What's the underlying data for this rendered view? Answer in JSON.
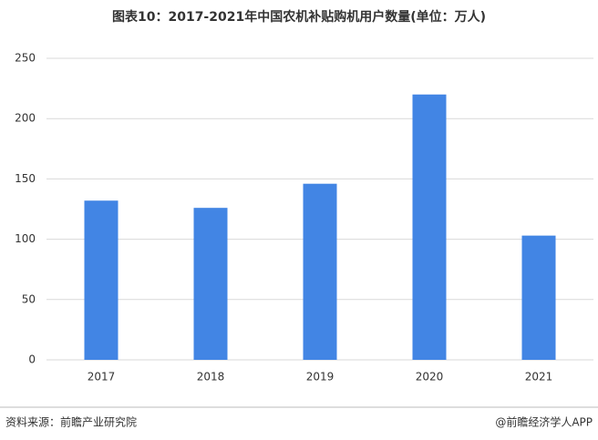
{
  "chart_data": {
    "type": "bar",
    "title": "图表10：2017-2021年中国农机补贴购机用户数量(单位：万人)",
    "categories": [
      "2017",
      "2018",
      "2019",
      "2020",
      "2021"
    ],
    "values": [
      132,
      126,
      146,
      220,
      103
    ],
    "color": "#4285e4",
    "ylim": [
      0,
      250
    ],
    "yticks": [
      0,
      50,
      100,
      150,
      200,
      250
    ],
    "grid": true,
    "source": "资料来源：前瞻产业研究院",
    "credit": "@前瞻经济学人APP"
  }
}
